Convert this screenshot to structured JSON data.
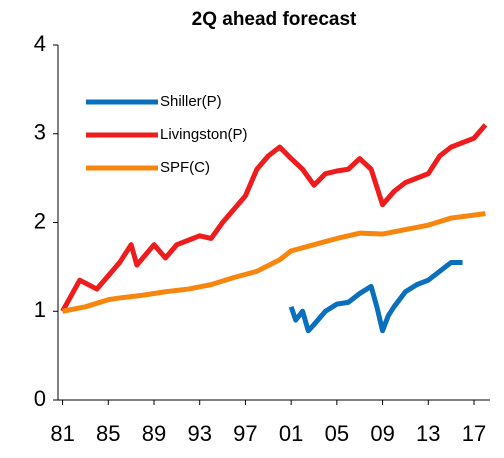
{
  "chart_data": {
    "type": "line",
    "title": "2Q ahead forecast",
    "xlim": [
      1980.6,
      2018.4
    ],
    "ylim": [
      0,
      4
    ],
    "xticks": [
      {
        "value": 1981,
        "label": "81"
      },
      {
        "value": 1985,
        "label": "85"
      },
      {
        "value": 1989,
        "label": "89"
      },
      {
        "value": 1993,
        "label": "93"
      },
      {
        "value": 1997,
        "label": "97"
      },
      {
        "value": 2001,
        "label": "01"
      },
      {
        "value": 2005,
        "label": "05"
      },
      {
        "value": 2009,
        "label": "09"
      },
      {
        "value": 2013,
        "label": "13"
      },
      {
        "value": 2017,
        "label": "17"
      }
    ],
    "yticks": [
      0,
      1,
      2,
      3,
      4
    ],
    "grid": false,
    "legend": "upper left",
    "series": [
      {
        "name": "Shiller(P)",
        "color": "#0a6fbd",
        "x": [
          2001,
          2001.4,
          2002,
          2002.5,
          2003,
          2004,
          2005,
          2006,
          2007,
          2008,
          2008.5,
          2009,
          2009.5,
          2010,
          2011,
          2012,
          2013,
          2014,
          2015,
          2016
        ],
        "values": [
          1.05,
          0.9,
          1.0,
          0.78,
          0.85,
          1.0,
          1.08,
          1.1,
          1.2,
          1.28,
          1.05,
          0.78,
          0.95,
          1.05,
          1.22,
          1.3,
          1.35,
          1.45,
          1.55,
          1.55
        ]
      },
      {
        "name": "Livingston(P)",
        "color": "#ee1c1c",
        "x": [
          1981,
          1982.5,
          1984,
          1986,
          1987,
          1987.5,
          1989,
          1990,
          1991,
          1992,
          1993,
          1994,
          1995,
          1996,
          1997,
          1998,
          1999,
          2000,
          2001,
          2002,
          2003,
          2004,
          2005,
          2006,
          2007,
          2008,
          2009,
          2010,
          2011,
          2012,
          2013,
          2014,
          2015,
          2016,
          2017,
          2018
        ],
        "values": [
          1.0,
          1.35,
          1.25,
          1.55,
          1.75,
          1.52,
          1.75,
          1.6,
          1.75,
          1.8,
          1.85,
          1.82,
          2.0,
          2.15,
          2.3,
          2.6,
          2.75,
          2.85,
          2.72,
          2.6,
          2.42,
          2.55,
          2.58,
          2.6,
          2.72,
          2.6,
          2.2,
          2.35,
          2.45,
          2.5,
          2.55,
          2.75,
          2.85,
          2.9,
          2.95,
          3.1
        ]
      },
      {
        "name": "SPF(C)",
        "color": "#f7860f",
        "x": [
          1981,
          1983,
          1985,
          1986,
          1988,
          1990,
          1992,
          1994,
          1996,
          1998,
          2000,
          2001,
          2003,
          2005,
          2007,
          2009,
          2011,
          2013,
          2015,
          2018
        ],
        "values": [
          1.0,
          1.05,
          1.13,
          1.15,
          1.18,
          1.22,
          1.25,
          1.3,
          1.38,
          1.45,
          1.58,
          1.68,
          1.75,
          1.82,
          1.88,
          1.87,
          1.92,
          1.97,
          2.05,
          2.1
        ]
      }
    ]
  }
}
